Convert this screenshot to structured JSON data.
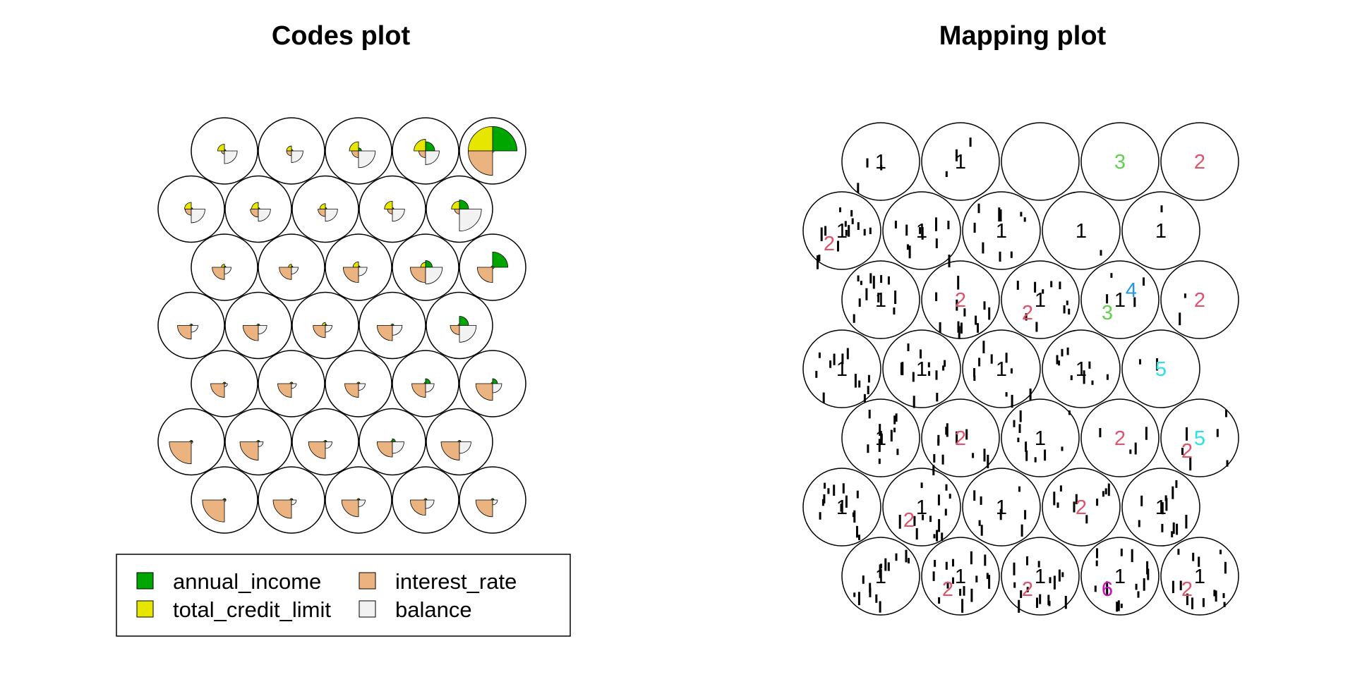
{
  "colors": {
    "annual_income": "#00A600",
    "total_credit_limit": "#E6E600",
    "interest_rate": "#EAB37F",
    "balance": "#F2F2F2",
    "outline": "#000000",
    "background": "#FFFFFF"
  },
  "chart_data": [
    {
      "type": "som-codes",
      "title": "Codes plot",
      "grid": {
        "xdim": 5,
        "ydim": 7,
        "topology": "hexagonal"
      },
      "variables": [
        "annual_income",
        "total_credit_limit",
        "interest_rate",
        "balance"
      ],
      "legend": {
        "placement": "bottom",
        "entries": [
          "annual_income",
          "total_credit_limit",
          "interest_rate",
          "balance"
        ]
      },
      "rows": [
        [
          [
            0.05,
            0.22,
            0.1,
            0.42
          ],
          [
            0.05,
            0.16,
            0.16,
            0.38
          ],
          [
            0.1,
            0.3,
            0.22,
            0.55
          ],
          [
            0.3,
            0.38,
            0.22,
            0.45
          ],
          [
            0.8,
            0.8,
            0.8,
            0.05
          ]
        ],
        [
          [
            0.05,
            0.22,
            0.2,
            0.45
          ],
          [
            0.05,
            0.22,
            0.26,
            0.4
          ],
          [
            0.05,
            0.18,
            0.24,
            0.4
          ],
          [
            0.05,
            0.26,
            0.16,
            0.4
          ],
          [
            0.3,
            0.26,
            0.16,
            0.72
          ]
        ],
        [
          [
            0.05,
            0.1,
            0.4,
            0.22
          ],
          [
            0.05,
            0.1,
            0.4,
            0.22
          ],
          [
            0.05,
            0.18,
            0.5,
            0.28
          ],
          [
            0.22,
            0.16,
            0.5,
            0.55
          ],
          [
            0.5,
            0.05,
            0.5,
            0.05
          ]
        ],
        [
          [
            0.05,
            0.05,
            0.45,
            0.22
          ],
          [
            0.05,
            0.05,
            0.5,
            0.28
          ],
          [
            0.05,
            0.1,
            0.4,
            0.22
          ],
          [
            0.05,
            0.05,
            0.5,
            0.32
          ],
          [
            0.3,
            0.05,
            0.3,
            0.55
          ]
        ],
        [
          [
            0.05,
            0.05,
            0.45,
            0.1
          ],
          [
            0.05,
            0.05,
            0.45,
            0.16
          ],
          [
            0.05,
            0.05,
            0.45,
            0.22
          ],
          [
            0.16,
            0.05,
            0.45,
            0.28
          ],
          [
            0.16,
            0.05,
            0.55,
            0.3
          ]
        ],
        [
          [
            0.05,
            0.05,
            0.72,
            0.05
          ],
          [
            0.05,
            0.05,
            0.6,
            0.16
          ],
          [
            0.05,
            0.05,
            0.55,
            0.22
          ],
          [
            0.1,
            0.05,
            0.5,
            0.38
          ],
          [
            0.05,
            0.05,
            0.6,
            0.38
          ]
        ],
        [
          [
            0.05,
            0.05,
            0.72,
            0.05
          ],
          [
            0.05,
            0.05,
            0.6,
            0.16
          ],
          [
            0.05,
            0.05,
            0.55,
            0.22
          ],
          [
            0.05,
            0.05,
            0.5,
            0.28
          ],
          [
            0.05,
            0.05,
            0.55,
            0.16
          ]
        ]
      ]
    },
    {
      "type": "som-mapping",
      "title": "Mapping plot",
      "grid": {
        "xdim": 5,
        "ydim": 7,
        "topology": "hexagonal"
      },
      "visible_cluster_labels": [
        {
          "text": "1",
          "row": 0,
          "col": 0,
          "color": "#000000"
        },
        {
          "text": "1",
          "row": 0,
          "col": 1,
          "color": "#000000"
        },
        {
          "text": "3",
          "row": 0,
          "col": 3,
          "color": "#61D04F"
        },
        {
          "text": "2",
          "row": 0,
          "col": 4,
          "color": "#DF536B"
        },
        {
          "text": "1",
          "row": 1,
          "col": 0,
          "color": "#000000"
        },
        {
          "text": "2",
          "row": 1,
          "col": 0,
          "color": "#DF536B"
        },
        {
          "text": "1",
          "row": 1,
          "col": 1,
          "color": "#000000"
        },
        {
          "text": "1",
          "row": 1,
          "col": 2,
          "color": "#000000"
        },
        {
          "text": "1",
          "row": 1,
          "col": 3,
          "color": "#000000"
        },
        {
          "text": "1",
          "row": 1,
          "col": 4,
          "color": "#000000"
        },
        {
          "text": "1",
          "row": 2,
          "col": 0,
          "color": "#000000"
        },
        {
          "text": "2",
          "row": 2,
          "col": 1,
          "color": "#DF536B"
        },
        {
          "text": "1",
          "row": 2,
          "col": 2,
          "color": "#000000"
        },
        {
          "text": "2",
          "row": 2,
          "col": 2,
          "color": "#DF536B"
        },
        {
          "text": "1",
          "row": 2,
          "col": 3,
          "color": "#000000"
        },
        {
          "text": "3",
          "row": 2,
          "col": 3,
          "color": "#61D04F"
        },
        {
          "text": "4",
          "row": 2,
          "col": 3,
          "color": "#2297E6"
        },
        {
          "text": "2",
          "row": 2,
          "col": 4,
          "color": "#DF536B"
        },
        {
          "text": "1",
          "row": 3,
          "col": 0,
          "color": "#000000"
        },
        {
          "text": "1",
          "row": 3,
          "col": 1,
          "color": "#000000"
        },
        {
          "text": "1",
          "row": 3,
          "col": 2,
          "color": "#000000"
        },
        {
          "text": "1",
          "row": 3,
          "col": 3,
          "color": "#000000"
        },
        {
          "text": "5",
          "row": 3,
          "col": 4,
          "color": "#28E2E5"
        },
        {
          "text": "1",
          "row": 4,
          "col": 0,
          "color": "#000000"
        },
        {
          "text": "2",
          "row": 4,
          "col": 1,
          "color": "#DF536B"
        },
        {
          "text": "1",
          "row": 4,
          "col": 2,
          "color": "#000000"
        },
        {
          "text": "2",
          "row": 4,
          "col": 3,
          "color": "#DF536B"
        },
        {
          "text": "5",
          "row": 4,
          "col": 4,
          "color": "#28E2E5"
        },
        {
          "text": "2",
          "row": 4,
          "col": 4,
          "color": "#DF536B"
        },
        {
          "text": "1",
          "row": 5,
          "col": 0,
          "color": "#000000"
        },
        {
          "text": "1",
          "row": 5,
          "col": 1,
          "color": "#000000"
        },
        {
          "text": "2",
          "row": 5,
          "col": 1,
          "color": "#DF536B"
        },
        {
          "text": "1",
          "row": 5,
          "col": 2,
          "color": "#000000"
        },
        {
          "text": "2",
          "row": 5,
          "col": 3,
          "color": "#DF536B"
        },
        {
          "text": "1",
          "row": 5,
          "col": 4,
          "color": "#000000"
        },
        {
          "text": "1",
          "row": 6,
          "col": 0,
          "color": "#000000"
        },
        {
          "text": "1",
          "row": 6,
          "col": 1,
          "color": "#000000"
        },
        {
          "text": "2",
          "row": 6,
          "col": 1,
          "color": "#DF536B"
        },
        {
          "text": "1",
          "row": 6,
          "col": 2,
          "color": "#000000"
        },
        {
          "text": "2",
          "row": 6,
          "col": 2,
          "color": "#DF536B"
        },
        {
          "text": "1",
          "row": 6,
          "col": 3,
          "color": "#000000"
        },
        {
          "text": "6",
          "row": 6,
          "col": 3,
          "color": "#CD0BBC"
        },
        {
          "text": "1",
          "row": 6,
          "col": 4,
          "color": "#000000"
        },
        {
          "text": "2",
          "row": 6,
          "col": 4,
          "color": "#DF536B"
        }
      ]
    }
  ]
}
